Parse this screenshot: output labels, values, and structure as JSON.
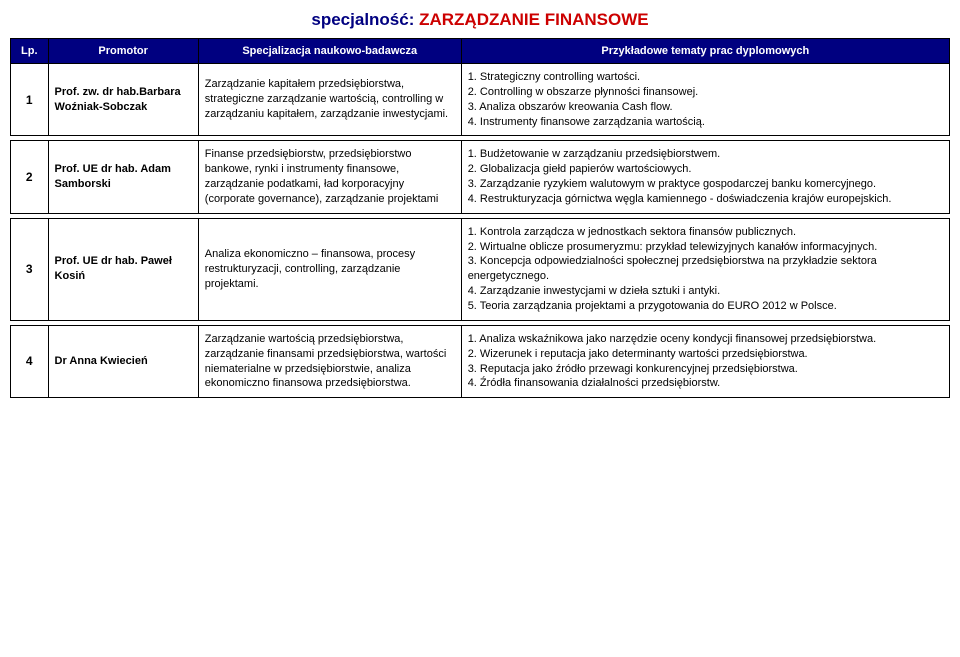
{
  "title": {
    "label": "specjalność: ",
    "value": "ZARZĄDZANIE FINANSOWE"
  },
  "headers": {
    "lp": "Lp.",
    "promotor": "Promotor",
    "spec": "Specjalizacja naukowo-badawcza",
    "tematy": "Przykładowe tematy prac dyplomowych"
  },
  "rows": [
    {
      "lp": "1",
      "promotor": "Prof. zw. dr hab.Barbara Woźniak-Sobczak",
      "spec": "Zarządzanie kapitałem przedsiębiorstwa, strategiczne zarządzanie wartością, controlling w zarządzaniu kapitałem, zarządzanie inwestycjami.",
      "tematy": "1. Strategiczny controlling wartości.\n2. Controlling w obszarze płynności finansowej.\n3. Analiza obszarów kreowania Cash flow.\n4. Instrumenty finansowe zarządzania wartością."
    },
    {
      "lp": "2",
      "promotor": "Prof. UE dr hab. Adam Samborski",
      "spec": "Finanse przedsiębiorstw, przedsiębiorstwo bankowe, rynki i instrumenty finansowe, zarządzanie podatkami, ład korporacyjny (corporate governance), zarządzanie projektami",
      "tematy": "1. Budżetowanie w zarządzaniu przedsiębiorstwem.\n2. Globalizacja giełd papierów wartościowych.\n3. Zarządzanie ryzykiem walutowym w praktyce gospodarczej banku komercyjnego.\n4. Restrukturyzacja górnictwa węgla kamiennego - doświadczenia krajów europejskich."
    },
    {
      "lp": "3",
      "promotor": "Prof. UE dr hab. Paweł Kosiń",
      "spec": "Analiza ekonomiczno – finansowa, procesy restrukturyzacji,  controlling, zarządzanie projektami.",
      "tematy": "1. Kontrola zarządcza w jednostkach sektora finansów publicznych.\n2. Wirtualne oblicze prosumeryzmu: przykład telewizyjnych kanałów informacyjnych.\n3. Koncepcja odpowiedzialności społecznej przedsiębiorstwa na przykładzie sektora energetycznego.\n4. Zarządzanie inwestycjami w dzieła sztuki i antyki.\n5. Teoria zarządzania projektami a  przygotowania do EURO 2012 w Polsce."
    },
    {
      "lp": "4",
      "promotor": "Dr Anna Kwiecień",
      "spec": "Zarządzanie wartością przedsiębiorstwa, zarządzanie finansami przedsiębiorstwa, wartości niematerialne w przedsiębiorstwie, analiza ekonomiczno finansowa przedsiębiorstwa.",
      "tematy": "1. Analiza wskaźnikowa jako narzędzie oceny kondycji finansowej przedsiębiorstwa.\n2. Wizerunek i reputacja jako determinanty wartości przedsiębiorstwa.\n3. Reputacja jako źródło przewagi konkurencyjnej przedsiębiorstwa.\n4. Źródła finansowania działalności przedsiębiorstw."
    }
  ]
}
